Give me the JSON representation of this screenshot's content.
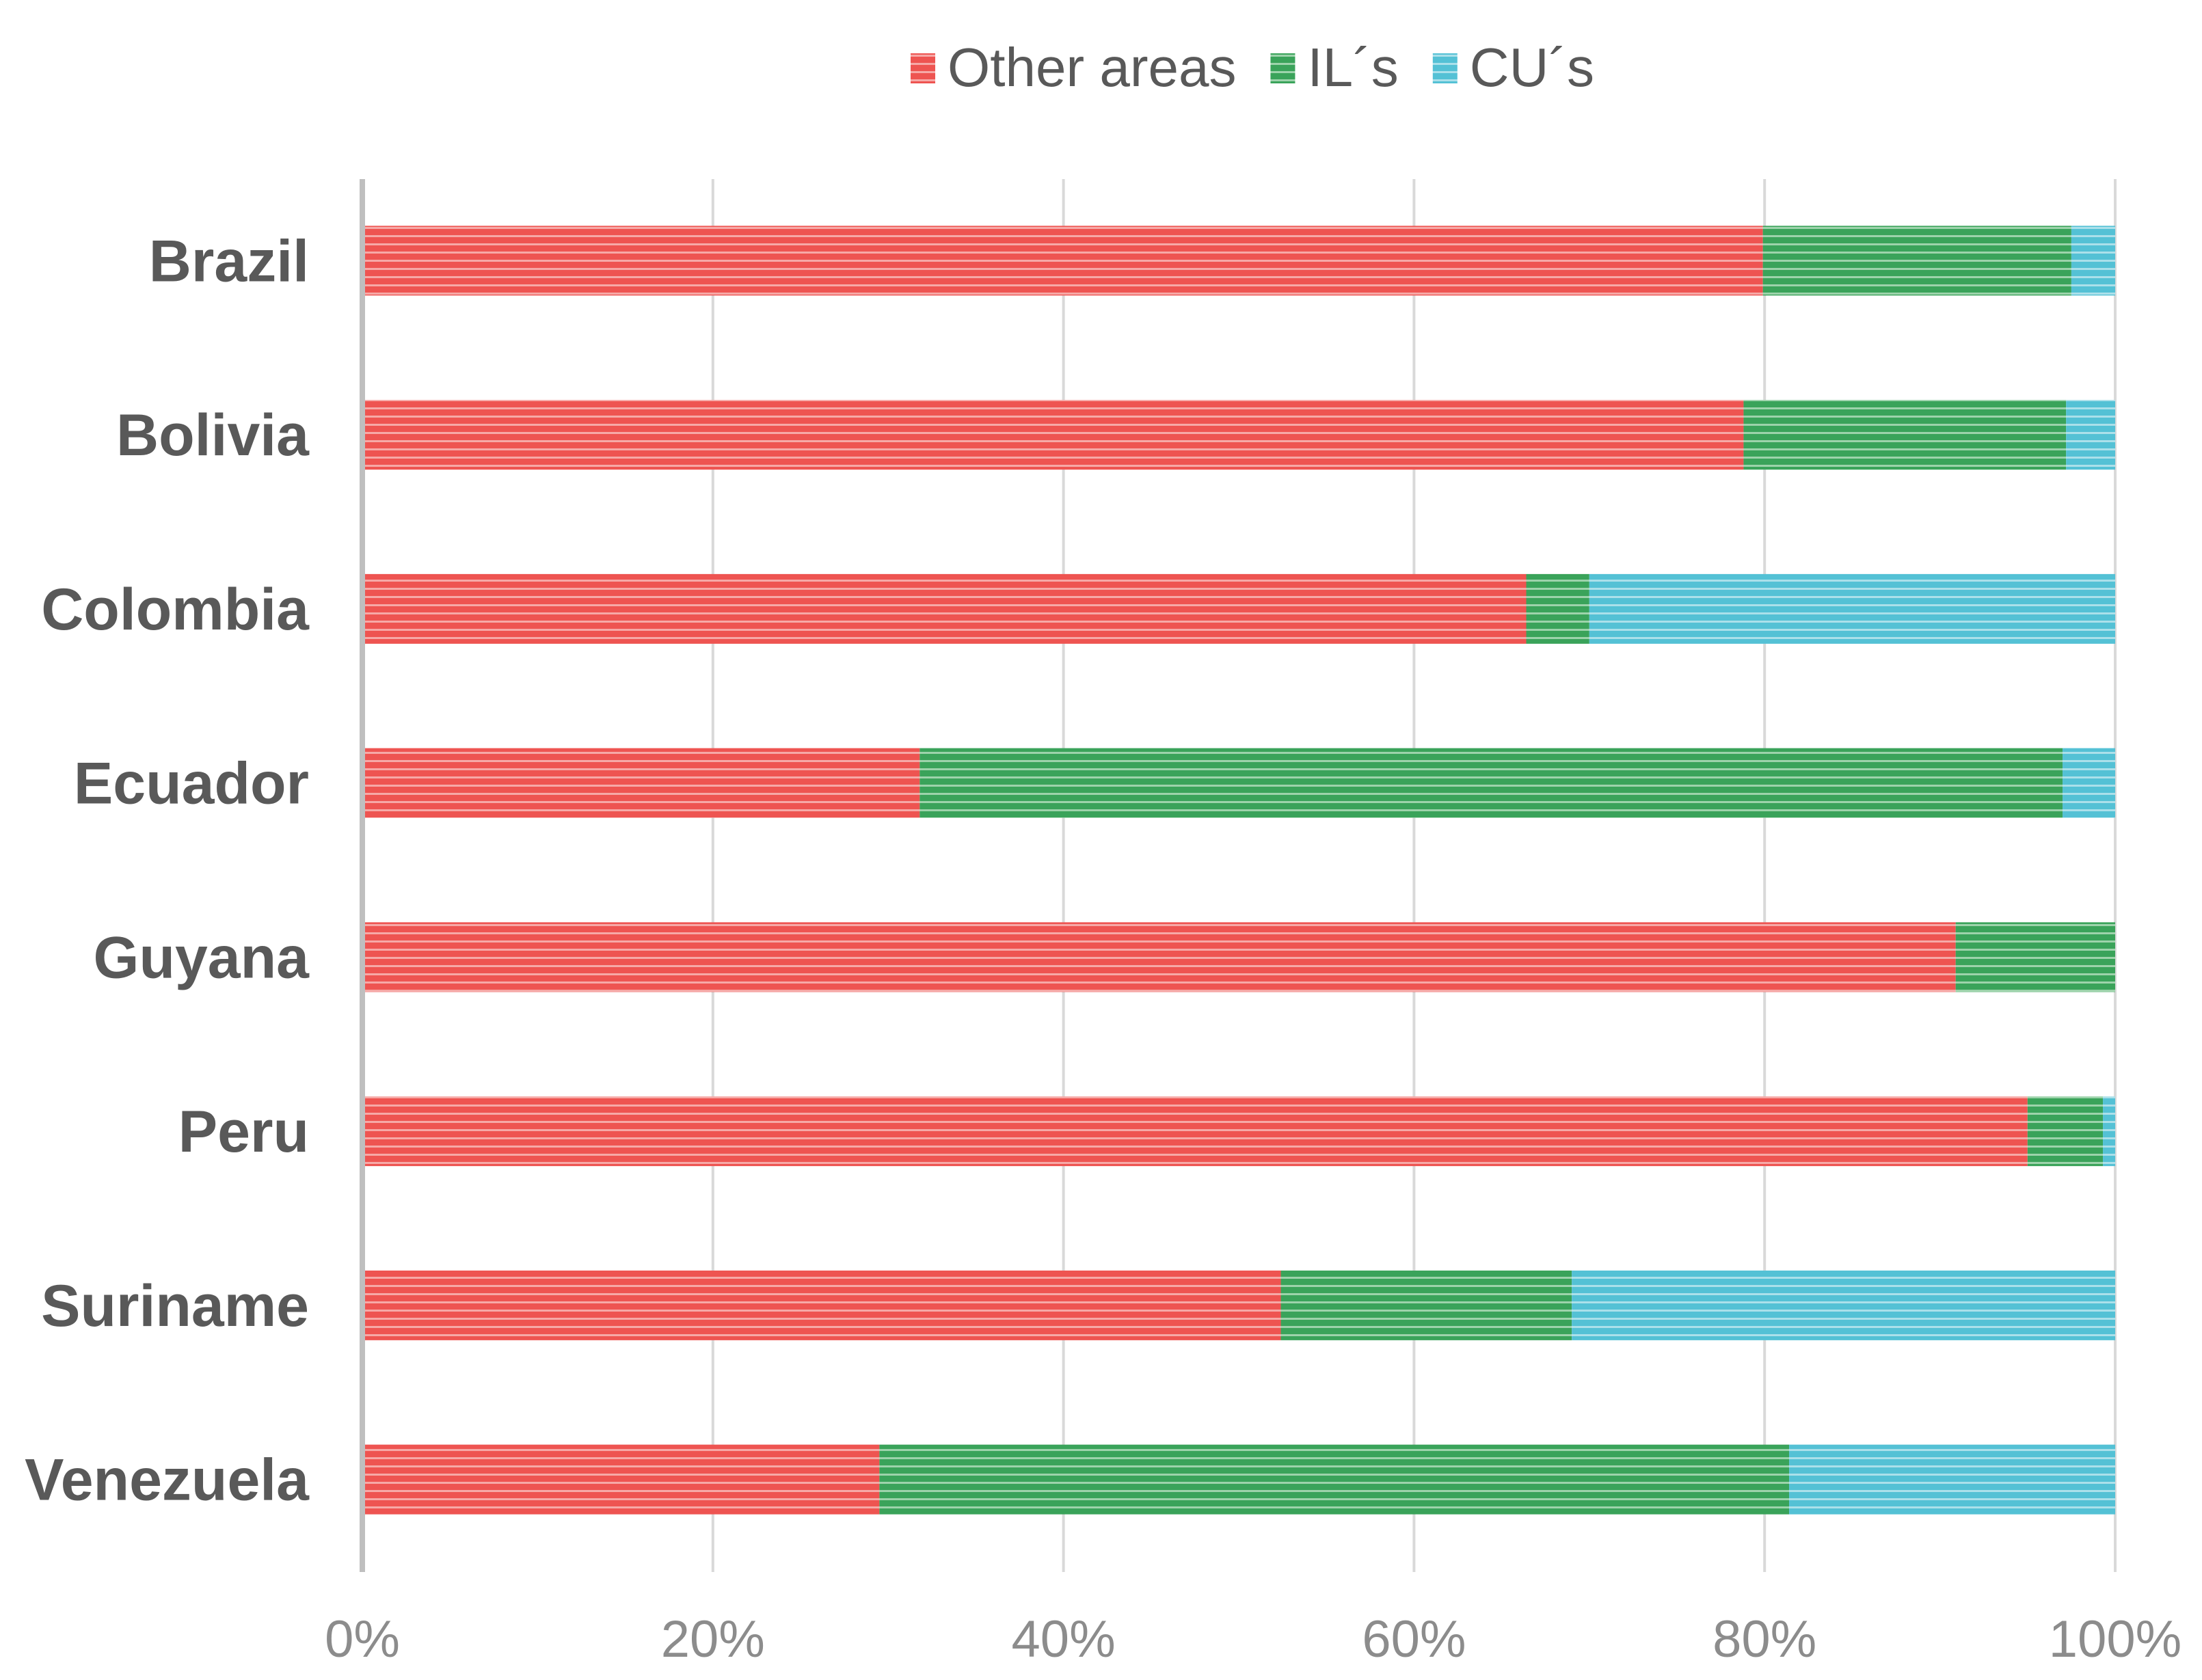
{
  "chart_data": {
    "type": "bar",
    "orientation": "horizontal",
    "stacked": "percent",
    "title": "",
    "xlabel": "",
    "ylabel": "",
    "xlim": [
      0,
      100
    ],
    "grid": true,
    "legend_position": "top",
    "categories": [
      "Brazil",
      "Bolivia",
      "Colombia",
      "Ecuador",
      "Guyana",
      "Peru",
      "Suriname",
      "Venezuela"
    ],
    "x_ticks": [
      "0%",
      "20%",
      "40%",
      "60%",
      "80%",
      "100%"
    ],
    "series": [
      {
        "name": "Other areas",
        "color": "#ee5451",
        "values": [
          79.9,
          78.8,
          66.4,
          31.8,
          90.9,
          95.0,
          52.4,
          29.5
        ]
      },
      {
        "name": "IL´s",
        "color": "#3aa35a",
        "values": [
          17.6,
          18.4,
          3.6,
          65.2,
          9.1,
          4.3,
          16.6,
          51.9
        ]
      },
      {
        "name": "CU´s",
        "color": "#54c1d5",
        "values": [
          2.5,
          2.8,
          30.0,
          3.0,
          0.0,
          0.7,
          31.0,
          18.6
        ]
      }
    ]
  }
}
